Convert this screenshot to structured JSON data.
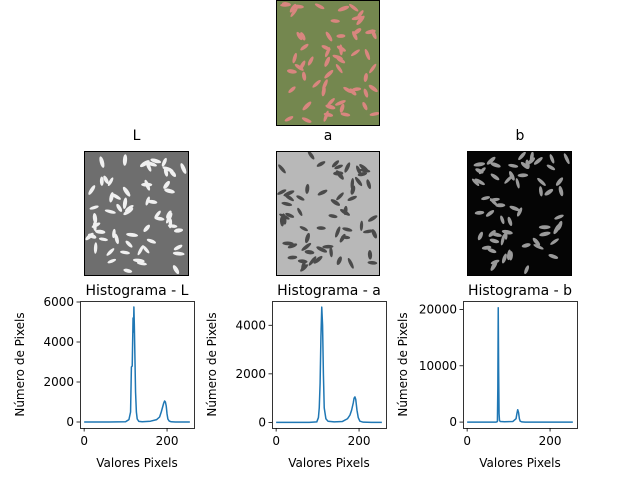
{
  "colors": {
    "line": "#1f77b4",
    "rgb_background": "#74874f",
    "rgb_grain": "#d9867f",
    "l_background": "#6e6e6e",
    "l_grain": "#f0f0f0",
    "a_background": "#b8b8b8",
    "a_grain": "#4a4a4a",
    "b_background": "#050505",
    "b_grain": "#9a9a9a"
  },
  "images": {
    "original": {
      "title": ""
    },
    "l": {
      "title": "L"
    },
    "a": {
      "title": "a"
    },
    "b": {
      "title": "b"
    }
  },
  "chart_data": [
    {
      "type": "line",
      "title": "Histograma - L",
      "xlabel": "Valores Pixels",
      "ylabel": "Número de Pixels",
      "xlim": [
        -10,
        265
      ],
      "ylim": [
        -300,
        6050
      ],
      "xticks": [
        0,
        200
      ],
      "xtick_labels": [
        "0",
        "200"
      ],
      "yticks": [
        0,
        2000,
        4000,
        6000
      ],
      "ytick_labels": [
        "0",
        "2000",
        "4000",
        "6000"
      ],
      "x": [
        0,
        60,
        100,
        108,
        112,
        114,
        116,
        118,
        119,
        120,
        121,
        122,
        124,
        126,
        128,
        132,
        140,
        160,
        175,
        182,
        186,
        190,
        192,
        194,
        196,
        198,
        200,
        202,
        205,
        210,
        220,
        240,
        255
      ],
      "values": [
        0,
        0,
        10,
        120,
        500,
        2750,
        2800,
        5200,
        4500,
        5750,
        4900,
        3800,
        1500,
        500,
        150,
        30,
        10,
        40,
        120,
        250,
        500,
        800,
        950,
        1050,
        1000,
        800,
        400,
        150,
        50,
        10,
        0,
        0,
        0
      ]
    },
    {
      "type": "line",
      "title": "Histograma - a",
      "xlabel": "Valores Pixels",
      "ylabel": "Número de Pixels",
      "xlim": [
        -10,
        265
      ],
      "ylim": [
        -230,
        5000
      ],
      "xticks": [
        0,
        200
      ],
      "xtick_labels": [
        "0",
        "200"
      ],
      "yticks": [
        0,
        2000,
        4000
      ],
      "ytick_labels": [
        "0",
        "2000",
        "4000"
      ],
      "x": [
        0,
        80,
        98,
        102,
        104,
        106,
        108,
        110,
        112,
        114,
        116,
        120,
        125,
        140,
        160,
        172,
        178,
        182,
        186,
        188,
        190,
        192,
        195,
        198,
        202,
        210,
        230,
        255
      ],
      "values": [
        0,
        0,
        20,
        200,
        600,
        1600,
        3500,
        4750,
        4000,
        2000,
        600,
        150,
        50,
        20,
        40,
        150,
        300,
        500,
        800,
        1000,
        1050,
        950,
        500,
        200,
        50,
        10,
        0,
        0
      ]
    },
    {
      "type": "line",
      "title": "Histograma - b",
      "xlabel": "Valores Pixels",
      "ylabel": "Número de Pixels",
      "xlim": [
        -10,
        265
      ],
      "ylim": [
        -1050,
        21500
      ],
      "xticks": [
        0,
        200
      ],
      "xtick_labels": [
        "0",
        "200"
      ],
      "yticks": [
        0,
        10000,
        20000
      ],
      "ytick_labels": [
        "0",
        "10000",
        "20000"
      ],
      "x": [
        0,
        70,
        73,
        74,
        75,
        76,
        77,
        78,
        80,
        90,
        110,
        118,
        120,
        122,
        124,
        126,
        128,
        132,
        140,
        255
      ],
      "values": [
        0,
        0,
        100,
        6000,
        20300,
        9000,
        1500,
        300,
        100,
        50,
        100,
        600,
        1500,
        2200,
        1700,
        600,
        150,
        30,
        0,
        0
      ]
    }
  ]
}
